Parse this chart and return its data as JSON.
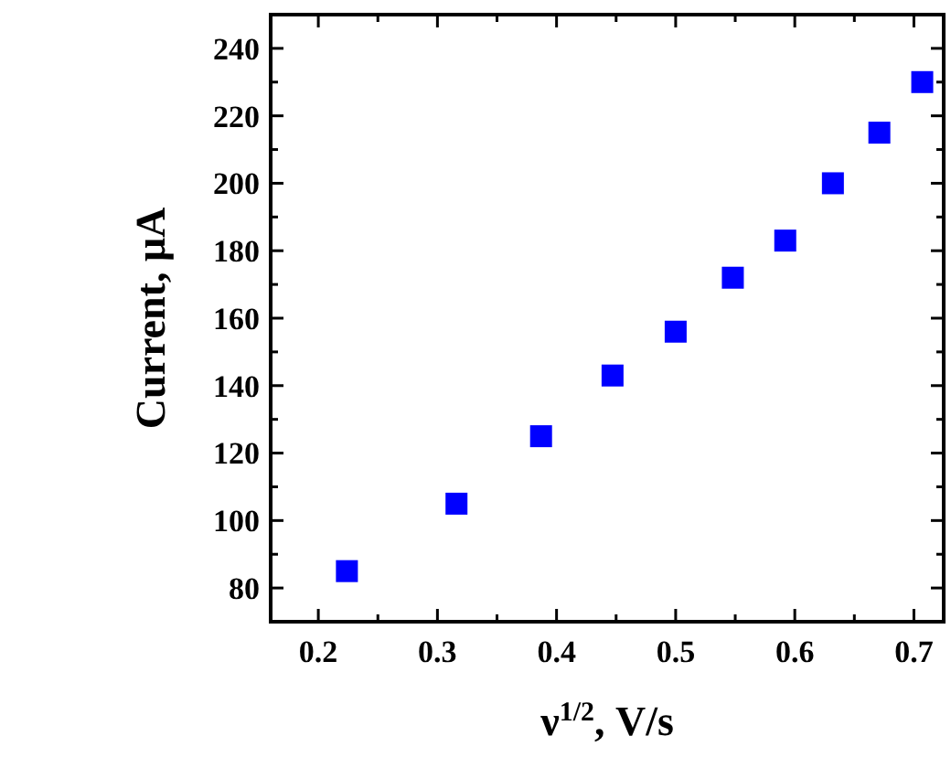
{
  "chart_data": {
    "type": "scatter",
    "xlabel": "ν$^{1/2}$, V/s",
    "ylabel": "Current, μA",
    "x": [
      0.224,
      0.316,
      0.387,
      0.447,
      0.5,
      0.548,
      0.592,
      0.632,
      0.671,
      0.707
    ],
    "series": [
      {
        "color": "#0000ff",
        "values": [
          85,
          105,
          125,
          143,
          156,
          172,
          183,
          200,
          215,
          230
        ]
      }
    ],
    "marker": "square",
    "xlim": [
      0.16,
      0.725
    ],
    "ylim": [
      70,
      250
    ],
    "xticks": [
      0.2,
      {
        "value": 0.25,
        "label": null
      },
      0.3,
      {
        "value": 0.35,
        "label": null
      },
      0.4,
      {
        "value": 0.45,
        "label": null
      },
      0.5,
      {
        "value": 0.55,
        "label": null
      },
      0.6,
      {
        "value": 0.65,
        "label": null
      },
      0.7
    ],
    "yticks": [
      80,
      {
        "value": 90,
        "label": null
      },
      100,
      {
        "value": 110,
        "label": null
      },
      120,
      {
        "value": 130,
        "label": null
      },
      140,
      {
        "value": 150,
        "label": null
      },
      160,
      {
        "value": 170,
        "label": null
      },
      180,
      {
        "value": 190,
        "label": null
      },
      200,
      {
        "value": 210,
        "label": null
      },
      220,
      {
        "value": 230,
        "label": null
      },
      240
    ],
    "grid": false
  }
}
